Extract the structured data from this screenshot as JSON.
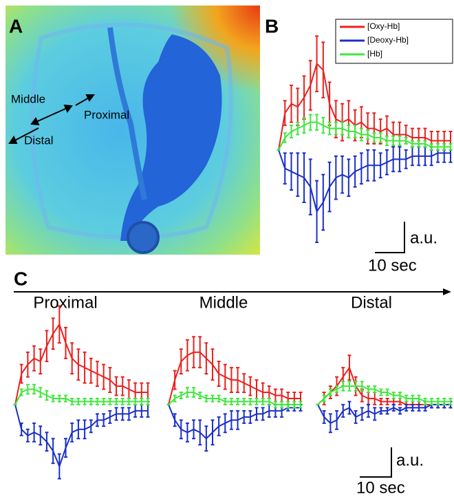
{
  "panel_labels": [
    "A",
    "B",
    "C"
  ],
  "image": {
    "labels": [
      "Middle",
      "Proximal",
      "Distal"
    ]
  },
  "scale_bars": [
    {
      "amplitude": "a.u.",
      "time": "10 sec"
    },
    {
      "amplitude": "a.u.",
      "time": "10 sec"
    }
  ],
  "chart_data": [
    {
      "type": "line",
      "legend": "upper right",
      "categories": [
        null,
        null,
        null,
        null,
        null,
        null,
        null,
        null,
        null,
        null,
        null,
        null,
        null,
        null,
        null,
        null,
        null,
        null,
        null,
        null,
        null,
        null,
        null,
        null,
        null,
        null,
        null,
        null
      ],
      "ylim": [
        -3.4,
        4.2
      ],
      "series": [
        {
          "name": "[Oxy-Hb]",
          "color": "#e8211e",
          "values": [
            0,
            1.2,
            1.5,
            1.4,
            1.7,
            2.1,
            2.8,
            2.6,
            1.5,
            1.0,
            0.9,
            1.0,
            0.8,
            0.9,
            0.7,
            0.7,
            0.6,
            0.7,
            0.5,
            0.5,
            0.5,
            0.4,
            0.4,
            0.4,
            0.3,
            0.3,
            0.3,
            0.3
          ],
          "errors": [
            0,
            0.4,
            0.6,
            0.6,
            0.7,
            0.8,
            0.9,
            0.9,
            0.7,
            0.6,
            0.6,
            0.6,
            0.5,
            0.5,
            0.5,
            0.5,
            0.4,
            0.4,
            0.4,
            0.4,
            0.3,
            0.3,
            0.3,
            0.3,
            0.3,
            0.3,
            0.3,
            0.3
          ]
        },
        {
          "name": "[Deoxy-Hb]",
          "color": "#1a2fc8",
          "values": [
            0,
            -0.6,
            -0.7,
            -0.8,
            -0.9,
            -1.2,
            -2.0,
            -1.7,
            -1.2,
            -0.9,
            -0.8,
            -0.9,
            -0.7,
            -0.6,
            -0.5,
            -0.5,
            -0.5,
            -0.4,
            -0.3,
            -0.3,
            -0.3,
            -0.2,
            -0.2,
            -0.2,
            -0.2,
            -0.1,
            -0.1,
            -0.1
          ],
          "errors": [
            0,
            0.5,
            0.6,
            0.7,
            0.8,
            0.9,
            1.0,
            0.9,
            0.8,
            0.7,
            0.6,
            0.6,
            0.5,
            0.5,
            0.5,
            0.5,
            0.4,
            0.4,
            0.4,
            0.4,
            0.3,
            0.3,
            0.3,
            0.3,
            0.3,
            0.3,
            0.3,
            0.3
          ]
        },
        {
          "name": "[Hb]",
          "color": "#3ee83a",
          "values": [
            0,
            0.4,
            0.6,
            0.7,
            0.8,
            0.9,
            0.9,
            0.8,
            0.7,
            0.7,
            0.7,
            0.6,
            0.6,
            0.5,
            0.5,
            0.4,
            0.4,
            0.3,
            0.3,
            0.3,
            0.3,
            0.2,
            0.2,
            0.2,
            0.1,
            0.1,
            0.1,
            0.1
          ],
          "errors": [
            0,
            0.15,
            0.2,
            0.2,
            0.25,
            0.25,
            0.25,
            0.25,
            0.2,
            0.2,
            0.2,
            0.2,
            0.2,
            0.2,
            0.15,
            0.15,
            0.15,
            0.15,
            0.15,
            0.15,
            0.1,
            0.1,
            0.1,
            0.1,
            0.1,
            0.1,
            0.1,
            0.1
          ]
        }
      ]
    },
    {
      "type": "line",
      "title": "Proximal",
      "categories": [
        null,
        null,
        null,
        null,
        null,
        null,
        null,
        null,
        null,
        null,
        null,
        null,
        null,
        null,
        null,
        null,
        null,
        null,
        null,
        null,
        null,
        null
      ],
      "ylim": [
        -2.5,
        3.3
      ],
      "series": [
        {
          "name": "[Oxy-Hb]",
          "color": "#e8211e",
          "values": [
            0,
            1.0,
            1.3,
            1.5,
            1.4,
            1.9,
            2.3,
            2.6,
            2.0,
            1.5,
            1.3,
            1.2,
            1.1,
            1.0,
            0.9,
            0.8,
            0.6,
            0.6,
            0.5,
            0.4,
            0.4,
            0.4
          ],
          "errors": [
            0,
            0.3,
            0.4,
            0.4,
            0.4,
            0.5,
            0.5,
            0.6,
            0.5,
            0.5,
            0.5,
            0.5,
            0.4,
            0.4,
            0.4,
            0.4,
            0.3,
            0.3,
            0.3,
            0.3,
            0.3,
            0.3
          ]
        },
        {
          "name": "[Deoxy-Hb]",
          "color": "#1a2fc8",
          "values": [
            0,
            -0.8,
            -1.0,
            -0.9,
            -1.0,
            -1.2,
            -1.5,
            -2.0,
            -1.4,
            -0.9,
            -0.8,
            -0.8,
            -0.7,
            -0.5,
            -0.5,
            -0.4,
            -0.3,
            -0.3,
            -0.3,
            -0.2,
            -0.2,
            -0.2
          ],
          "errors": [
            0,
            0.2,
            0.2,
            0.3,
            0.3,
            0.3,
            0.4,
            0.4,
            0.3,
            0.3,
            0.3,
            0.3,
            0.2,
            0.2,
            0.2,
            0.2,
            0.2,
            0.2,
            0.2,
            0.2,
            0.2,
            0.2
          ]
        },
        {
          "name": "[Hb]",
          "color": "#3ee83a",
          "values": [
            0,
            0.4,
            0.5,
            0.5,
            0.4,
            0.3,
            0.2,
            0.2,
            0.2,
            0.1,
            0.1,
            0.1,
            0.1,
            0.1,
            0.1,
            0.1,
            0.1,
            0.1,
            0.1,
            0.1,
            0.1,
            0.1
          ],
          "errors": [
            0,
            0.1,
            0.15,
            0.15,
            0.15,
            0.15,
            0.1,
            0.1,
            0.1,
            0.1,
            0.1,
            0.1,
            0.1,
            0.1,
            0.1,
            0.1,
            0.1,
            0.1,
            0.1,
            0.1,
            0.1,
            0.1
          ]
        }
      ]
    },
    {
      "type": "line",
      "title": "Middle",
      "categories": [
        null,
        null,
        null,
        null,
        null,
        null,
        null,
        null,
        null,
        null,
        null,
        null,
        null,
        null,
        null,
        null,
        null,
        null,
        null,
        null,
        null,
        null
      ],
      "ylim": [
        -2.5,
        3.3
      ],
      "series": [
        {
          "name": "[Oxy-Hb]",
          "color": "#e8211e",
          "values": [
            0,
            0.8,
            1.4,
            1.6,
            1.7,
            1.7,
            1.5,
            1.3,
            1.0,
            0.9,
            0.8,
            0.8,
            0.7,
            0.6,
            0.5,
            0.4,
            0.4,
            0.3,
            0.3,
            0.2,
            0.2,
            0.2
          ],
          "errors": [
            0,
            0.3,
            0.4,
            0.5,
            0.5,
            0.5,
            0.5,
            0.5,
            0.4,
            0.4,
            0.4,
            0.4,
            0.3,
            0.3,
            0.3,
            0.3,
            0.2,
            0.2,
            0.2,
            0.2,
            0.2,
            0.2
          ]
        },
        {
          "name": "[Deoxy-Hb]",
          "color": "#1a2fc8",
          "values": [
            0,
            -0.5,
            -0.8,
            -0.9,
            -0.8,
            -0.9,
            -1.1,
            -0.9,
            -0.7,
            -0.6,
            -0.5,
            -0.5,
            -0.4,
            -0.4,
            -0.3,
            -0.3,
            -0.2,
            -0.2,
            -0.2,
            -0.1,
            -0.1,
            -0.1
          ],
          "errors": [
            0,
            0.2,
            0.3,
            0.3,
            0.3,
            0.4,
            0.4,
            0.4,
            0.3,
            0.3,
            0.3,
            0.3,
            0.2,
            0.2,
            0.2,
            0.2,
            0.2,
            0.2,
            0.2,
            0.1,
            0.1,
            0.1
          ]
        },
        {
          "name": "[Hb]",
          "color": "#3ee83a",
          "values": [
            0,
            0.2,
            0.3,
            0.4,
            0.4,
            0.3,
            0.2,
            0.2,
            0.2,
            0.1,
            0.1,
            0.1,
            0.1,
            0.1,
            0.1,
            0.1,
            0.1,
            0.0,
            0.0,
            0.0,
            0.0,
            0.0
          ],
          "errors": [
            0,
            0.1,
            0.1,
            0.15,
            0.15,
            0.1,
            0.1,
            0.1,
            0.1,
            0.1,
            0.1,
            0.1,
            0.1,
            0.1,
            0.1,
            0.1,
            0.1,
            0.1,
            0.1,
            0.1,
            0.1,
            0.1
          ]
        }
      ]
    },
    {
      "type": "line",
      "title": "Distal",
      "categories": [
        null,
        null,
        null,
        null,
        null,
        null,
        null,
        null,
        null,
        null,
        null,
        null,
        null,
        null,
        null,
        null,
        null,
        null,
        null,
        null,
        null,
        null
      ],
      "ylim": [
        -2.5,
        3.3
      ],
      "series": [
        {
          "name": "[Oxy-Hb]",
          "color": "#e8211e",
          "values": [
            0,
            0.2,
            0.4,
            0.6,
            0.9,
            1.2,
            0.6,
            0.3,
            0.2,
            0.2,
            0.1,
            0.1,
            0.1,
            0.1,
            0.0,
            0.0,
            0.0,
            0.0,
            0.0,
            0.0,
            0.0,
            0.0
          ],
          "errors": [
            0,
            0.2,
            0.2,
            0.3,
            0.3,
            0.4,
            0.3,
            0.2,
            0.2,
            0.2,
            0.1,
            0.1,
            0.1,
            0.1,
            0.1,
            0.1,
            0.1,
            0.1,
            0.1,
            0.1,
            0.1,
            0.1
          ]
        },
        {
          "name": "[Deoxy-Hb]",
          "color": "#1a2fc8",
          "values": [
            0,
            -0.4,
            -0.6,
            -0.5,
            -0.2,
            -0.1,
            -0.4,
            -0.3,
            -0.2,
            -0.3,
            -0.2,
            -0.2,
            -0.1,
            -0.2,
            -0.1,
            -0.1,
            -0.1,
            -0.1,
            0,
            0,
            0,
            0
          ],
          "errors": [
            0,
            0.2,
            0.3,
            0.3,
            0.2,
            0.2,
            0.2,
            0.2,
            0.2,
            0.2,
            0.1,
            0.1,
            0.1,
            0.1,
            0.1,
            0.1,
            0.1,
            0.1,
            0.1,
            0.1,
            0.1,
            0.1
          ]
        },
        {
          "name": "[Hb]",
          "color": "#3ee83a",
          "values": [
            0,
            0.2,
            0.4,
            0.5,
            0.6,
            0.6,
            0.6,
            0.6,
            0.5,
            0.5,
            0.4,
            0.4,
            0.3,
            0.3,
            0.2,
            0.2,
            0.2,
            0.1,
            0.1,
            0.1,
            0.1,
            0.1
          ],
          "errors": [
            0,
            0.1,
            0.1,
            0.1,
            0.15,
            0.15,
            0.15,
            0.15,
            0.1,
            0.1,
            0.1,
            0.1,
            0.1,
            0.1,
            0.1,
            0.1,
            0.1,
            0.1,
            0.1,
            0.1,
            0.1,
            0.1
          ]
        }
      ]
    }
  ]
}
